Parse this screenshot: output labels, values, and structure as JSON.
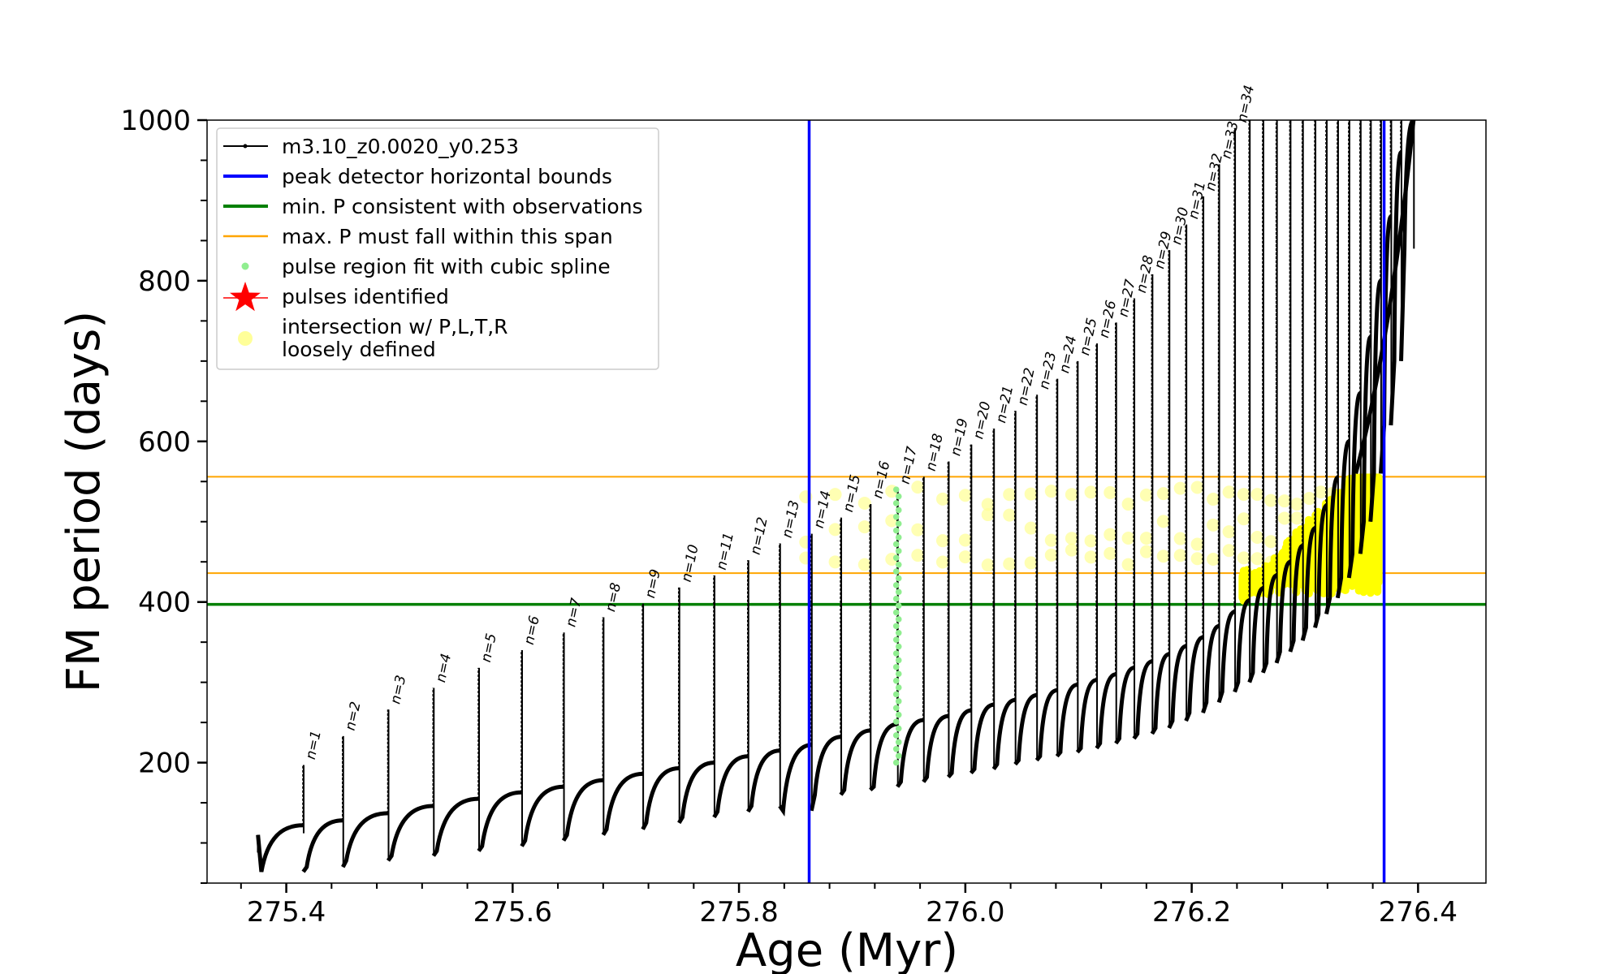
{
  "chart_data": {
    "type": "line",
    "xlabel": "Age (Myr)",
    "ylabel": "FM period (days)",
    "xlim": [
      275.33,
      276.46
    ],
    "ylim": [
      50,
      1000
    ],
    "x_ticks": [
      {
        "value": 275.4,
        "label": "275.4"
      },
      {
        "value": 275.6,
        "label": "275.6"
      },
      {
        "value": 275.8,
        "label": "275.8"
      },
      {
        "value": 276.0,
        "label": "276.0"
      },
      {
        "value": 276.2,
        "label": "276.2"
      },
      {
        "value": 276.4,
        "label": "276.4"
      }
    ],
    "x_minor_step": 0.04,
    "y_ticks": [
      {
        "value": 200,
        "label": "200"
      },
      {
        "value": 400,
        "label": "400"
      },
      {
        "value": 600,
        "label": "600"
      },
      {
        "value": 800,
        "label": "800"
      },
      {
        "value": 1000,
        "label": "1000"
      }
    ],
    "y_minor_step": 50,
    "grid": false,
    "legend_position": "top-left",
    "legend": [
      {
        "label": "m3.10_z0.0020_y0.253",
        "color": "#000000",
        "marker": "line-dot"
      },
      {
        "label": "peak detector horizontal bounds",
        "color": "#0000ff",
        "marker": "line"
      },
      {
        "label": "min. P consistent with observations",
        "color": "#008000",
        "marker": "line"
      },
      {
        "label": "max. P must fall within this span",
        "color": "#ffa500",
        "marker": "thin-line"
      },
      {
        "label": "pulse region fit with cubic spline",
        "color": "#90ee90",
        "marker": "dot"
      },
      {
        "label": "pulses identified",
        "color": "#ff0000",
        "marker": "star"
      },
      {
        "label": "intersection w/ P,L,T,R",
        "label2": "loosely defined",
        "color": "#ffff99",
        "marker": "circle"
      }
    ],
    "vertical_lines": [
      {
        "name": "peak detector horizontal bounds",
        "x": 275.862,
        "color": "#0000ff"
      },
      {
        "name": "peak detector horizontal bounds",
        "x": 276.37,
        "color": "#0000ff"
      }
    ],
    "horizontal_lines": [
      {
        "name": "min. P consistent with observations",
        "y": 397,
        "color": "#008000"
      },
      {
        "name": "max. P must fall within this span",
        "y": 556,
        "color": "#ffa500"
      },
      {
        "name": "max. P must fall within this span",
        "y": 436,
        "color": "#ffa500"
      }
    ],
    "pulses": [
      {
        "n": 1,
        "label": "n=1",
        "age": 275.415,
        "peak": 197,
        "base_start": 112,
        "min": 64,
        "pre": 122
      },
      {
        "n": 2,
        "label": "n=2",
        "age": 275.45,
        "peak": 233,
        "base_start": 64,
        "min": 70,
        "pre": 128
      },
      {
        "n": 3,
        "label": "n=3",
        "age": 275.49,
        "peak": 266,
        "base_start": 70,
        "min": 78,
        "pre": 137
      },
      {
        "n": 4,
        "label": "n=4",
        "age": 275.53,
        "peak": 293,
        "base_start": 78,
        "min": 84,
        "pre": 146
      },
      {
        "n": 5,
        "label": "n=5",
        "age": 275.57,
        "peak": 318,
        "base_start": 84,
        "min": 90,
        "pre": 155
      },
      {
        "n": 6,
        "label": "n=6",
        "age": 275.608,
        "peak": 340,
        "base_start": 90,
        "min": 96,
        "pre": 163
      },
      {
        "n": 7,
        "label": "n=7",
        "age": 275.645,
        "peak": 362,
        "base_start": 96,
        "min": 103,
        "pre": 170
      },
      {
        "n": 8,
        "label": "n=8",
        "age": 275.68,
        "peak": 381,
        "base_start": 103,
        "min": 110,
        "pre": 178
      },
      {
        "n": 9,
        "label": "n=9",
        "age": 275.715,
        "peak": 398,
        "base_start": 110,
        "min": 117,
        "pre": 186
      },
      {
        "n": 10,
        "label": "n=10",
        "age": 275.747,
        "peak": 418,
        "base_start": 117,
        "min": 125,
        "pre": 193
      },
      {
        "n": 11,
        "label": "n=11",
        "age": 275.778,
        "peak": 433,
        "base_start": 125,
        "min": 132,
        "pre": 200
      },
      {
        "n": 12,
        "label": "n=12",
        "age": 275.808,
        "peak": 452,
        "base_start": 132,
        "min": 139,
        "pre": 208
      },
      {
        "n": 13,
        "label": "n=13",
        "age": 275.836,
        "peak": 473,
        "base_start": 139,
        "min": 146,
        "pre": 215
      },
      {
        "n": 14,
        "label": "n=14",
        "age": 275.864,
        "peak": 485,
        "base_start": 146,
        "min": 140,
        "pre": 222
      },
      {
        "n": 15,
        "label": "n=15",
        "age": 275.89,
        "peak": 505,
        "base_start": 140,
        "min": 160,
        "pre": 232
      },
      {
        "n": 16,
        "label": "n=16",
        "age": 275.916,
        "peak": 522,
        "base_start": 160,
        "min": 166,
        "pre": 240
      },
      {
        "n": 17,
        "label": "n=17",
        "age": 275.94,
        "peak": 540,
        "base_start": 166,
        "min": 170,
        "pre": 248
      },
      {
        "n": 18,
        "label": "n=18",
        "age": 275.963,
        "peak": 556,
        "base_start": 170,
        "min": 176,
        "pre": 253
      },
      {
        "n": 19,
        "label": "n=19",
        "age": 275.985,
        "peak": 575,
        "base_start": 176,
        "min": 182,
        "pre": 258
      },
      {
        "n": 20,
        "label": "n=20",
        "age": 276.005,
        "peak": 596,
        "base_start": 182,
        "min": 187,
        "pre": 265
      },
      {
        "n": 21,
        "label": "n=21",
        "age": 276.025,
        "peak": 616,
        "base_start": 187,
        "min": 192,
        "pre": 272
      },
      {
        "n": 22,
        "label": "n=22",
        "age": 276.044,
        "peak": 638,
        "base_start": 192,
        "min": 198,
        "pre": 278
      },
      {
        "n": 23,
        "label": "n=23",
        "age": 276.063,
        "peak": 658,
        "base_start": 198,
        "min": 203,
        "pre": 284
      },
      {
        "n": 24,
        "label": "n=24",
        "age": 276.081,
        "peak": 678,
        "base_start": 203,
        "min": 208,
        "pre": 290
      },
      {
        "n": 25,
        "label": "n=25",
        "age": 276.099,
        "peak": 700,
        "base_start": 208,
        "min": 213,
        "pre": 297
      },
      {
        "n": 26,
        "label": "n=26",
        "age": 276.116,
        "peak": 722,
        "base_start": 213,
        "min": 218,
        "pre": 303
      },
      {
        "n": 27,
        "label": "n=27",
        "age": 276.133,
        "peak": 748,
        "base_start": 218,
        "min": 224,
        "pre": 310
      },
      {
        "n": 28,
        "label": "n=28",
        "age": 276.149,
        "peak": 778,
        "base_start": 224,
        "min": 230,
        "pre": 318
      },
      {
        "n": 29,
        "label": "n=29",
        "age": 276.165,
        "peak": 808,
        "base_start": 230,
        "min": 236,
        "pre": 326
      },
      {
        "n": 30,
        "label": "n=30",
        "age": 276.18,
        "peak": 838,
        "base_start": 236,
        "min": 243,
        "pre": 335
      },
      {
        "n": 31,
        "label": "n=31",
        "age": 276.195,
        "peak": 870,
        "base_start": 243,
        "min": 252,
        "pre": 345
      },
      {
        "n": 32,
        "label": "n=32",
        "age": 276.21,
        "peak": 905,
        "base_start": 252,
        "min": 262,
        "pre": 356
      },
      {
        "n": 33,
        "label": "n=33",
        "age": 276.224,
        "peak": 945,
        "base_start": 262,
        "min": 275,
        "pre": 370
      },
      {
        "n": 34,
        "label": "n=34",
        "age": 276.238,
        "peak": 990,
        "base_start": 275,
        "min": 288,
        "pre": 388
      },
      {
        "n": 35,
        "label": "",
        "age": 276.251,
        "peak": 1000,
        "base_start": 288,
        "min": 300,
        "pre": 402
      },
      {
        "n": 36,
        "label": "",
        "age": 276.263,
        "peak": 1000,
        "base_start": 300,
        "min": 312,
        "pre": 417
      },
      {
        "n": 37,
        "label": "",
        "age": 276.275,
        "peak": 1000,
        "base_start": 312,
        "min": 324,
        "pre": 433
      },
      {
        "n": 38,
        "label": "",
        "age": 276.287,
        "peak": 1000,
        "base_start": 324,
        "min": 338,
        "pre": 450
      },
      {
        "n": 39,
        "label": "",
        "age": 276.298,
        "peak": 1000,
        "base_start": 338,
        "min": 352,
        "pre": 470
      },
      {
        "n": 40,
        "label": "",
        "age": 276.309,
        "peak": 1000,
        "base_start": 352,
        "min": 368,
        "pre": 492
      },
      {
        "n": 41,
        "label": "",
        "age": 276.319,
        "peak": 1000,
        "base_start": 368,
        "min": 385,
        "pre": 520
      },
      {
        "n": 42,
        "label": "",
        "age": 276.329,
        "peak": 1000,
        "base_start": 385,
        "min": 405,
        "pre": 555
      },
      {
        "n": 43,
        "label": "",
        "age": 276.339,
        "peak": 1000,
        "base_start": 405,
        "min": 430,
        "pre": 600
      },
      {
        "n": 44,
        "label": "",
        "age": 276.349,
        "peak": 1000,
        "base_start": 430,
        "min": 460,
        "pre": 660
      },
      {
        "n": 45,
        "label": "",
        "age": 276.358,
        "peak": 1000,
        "base_start": 460,
        "min": 500,
        "pre": 730
      },
      {
        "n": 46,
        "label": "",
        "age": 276.367,
        "peak": 1000,
        "base_start": 500,
        "min": 560,
        "pre": 800
      },
      {
        "n": 47,
        "label": "",
        "age": 276.376,
        "peak": 1000,
        "base_start": 560,
        "min": 620,
        "pre": 880
      },
      {
        "n": 48,
        "label": "",
        "age": 276.385,
        "peak": 1000,
        "base_start": 620,
        "min": 700,
        "pre": 960
      },
      {
        "n": 49,
        "label": "",
        "age": 276.396,
        "peak": 1000,
        "base_start": 700,
        "min": 840,
        "pre": 1000
      }
    ],
    "track_start": {
      "age": 275.375,
      "period": 110
    },
    "spline_fit": {
      "age": 275.94,
      "y_range": [
        200,
        540
      ]
    },
    "intersections": {
      "scatter_age_range": [
        275.862,
        276.33
      ],
      "scatter_y_range": [
        445,
        545
      ],
      "band_age_range": [
        276.245,
        276.365
      ],
      "band_y_range": [
        400,
        560
      ]
    }
  }
}
